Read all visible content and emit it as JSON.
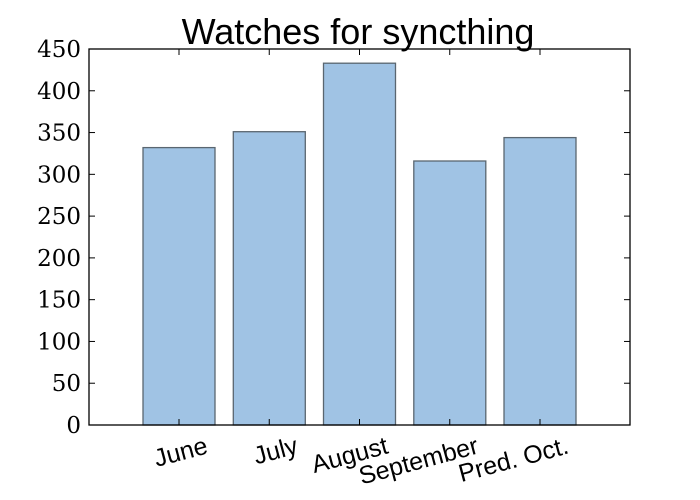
{
  "chart_data": {
    "type": "bar",
    "title": "Watches for syncthing",
    "xlabel": "",
    "ylabel": "",
    "categories": [
      "June",
      "July",
      "August",
      "September",
      "Pred. Oct."
    ],
    "values": [
      332,
      351,
      433,
      316,
      344
    ],
    "ylim": [
      0,
      450
    ],
    "yticks": [
      0,
      50,
      100,
      150,
      200,
      250,
      300,
      350,
      400,
      450
    ],
    "grid": false,
    "legend": "none",
    "bar_color": "#a0c3e4",
    "bar_edge_color": "#5a6670",
    "xtick_rotation_deg": -15
  }
}
